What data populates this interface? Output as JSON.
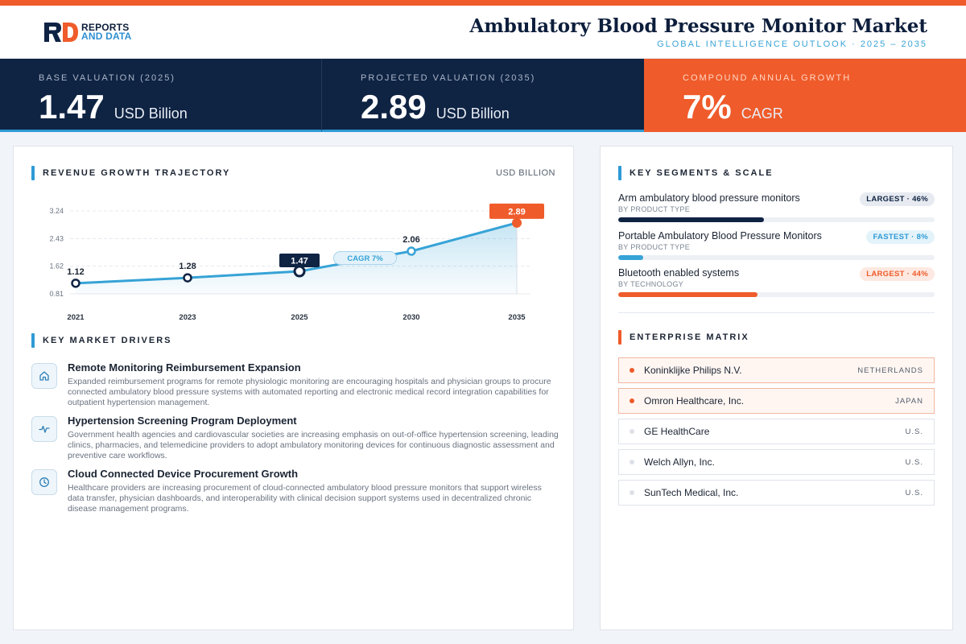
{
  "header": {
    "logo_line1": "REPORTS",
    "logo_line2": "AND DATA",
    "title": "Ambulatory Blood Pressure Monitor Market",
    "subtitle": "GLOBAL INTELLIGENCE OUTLOOK  ·  2025 – 2035"
  },
  "kpis": [
    {
      "label": "BASE VALUATION (2025)",
      "value": "1.47",
      "unit": "USD Billion"
    },
    {
      "label": "PROJECTED VALUATION (2035)",
      "value": "2.89",
      "unit": "USD Billion"
    },
    {
      "label": "COMPOUND ANNUAL GROWTH",
      "value": "7%",
      "unit": "CAGR"
    }
  ],
  "chart_section": {
    "title": "REVENUE GROWTH TRAJECTORY",
    "unit": "USD BILLION",
    "cagr_badge": "CAGR 7%"
  },
  "chart_data": {
    "type": "area",
    "title": "REVENUE GROWTH TRAJECTORY",
    "ylabel": "USD BILLION",
    "x": [
      "2021",
      "2023",
      "2025",
      "2030",
      "2035"
    ],
    "values": [
      1.12,
      1.28,
      1.47,
      2.06,
      2.89
    ],
    "data_labels": [
      "1.12",
      "1.28",
      "1.47",
      "2.06",
      "2.89"
    ],
    "yticks": [
      "0.81",
      "1.62",
      "2.43",
      "3.24"
    ],
    "ylim": [
      0.81,
      3.24
    ],
    "grid": true,
    "colors": {
      "line": "#36a3d6",
      "highlight_base": "#0f2343",
      "highlight_end": "#ef5b2a"
    }
  },
  "drivers_section": {
    "title": "KEY MARKET DRIVERS",
    "items": [
      {
        "icon": "home-icon",
        "title": "Remote Monitoring Reimbursement Expansion",
        "text": "Expanded reimbursement programs for remote physiologic monitoring are encouraging hospitals and physician groups to procure connected ambulatory blood pressure systems with automated reporting and electronic medical record integration capabilities for outpatient hypertension management."
      },
      {
        "icon": "pulse-icon",
        "title": "Hypertension Screening Program Deployment",
        "text": "Government health agencies and cardiovascular societies are increasing emphasis on out-of-office hypertension screening, leading clinics, pharmacies, and telemedicine providers to adopt ambulatory monitoring devices for continuous diagnostic assessment and preventive care workflows."
      },
      {
        "icon": "clock-icon",
        "title": "Cloud Connected Device Procurement Growth",
        "text": "Healthcare providers are increasing procurement of cloud-connected ambulatory blood pressure monitors that support wireless data transfer, physician dashboards, and interoperability with clinical decision support systems used in decentralized chronic disease management programs."
      }
    ]
  },
  "segments_section": {
    "title": "KEY SEGMENTS & SCALE",
    "items": [
      {
        "name": "Arm ambulatory blood pressure monitors",
        "category": "BY PRODUCT TYPE",
        "badge": "LARGEST · 46%",
        "share": 0.46,
        "color": "#0f2343",
        "badge_style": "dark"
      },
      {
        "name": "Portable Ambulatory Blood Pressure Monitors",
        "category": "BY PRODUCT TYPE",
        "badge": "FASTEST · 8%",
        "share": 0.08,
        "color": "#36a3d6",
        "badge_style": "blue"
      },
      {
        "name": "Bluetooth enabled systems",
        "category": "BY TECHNOLOGY",
        "badge": "LARGEST · 44%",
        "share": 0.44,
        "color": "#ef5b2a",
        "badge_style": "orange"
      }
    ]
  },
  "enterprise_section": {
    "title": "ENTERPRISE MATRIX",
    "items": [
      {
        "name": "Koninklijke Philips N.V.",
        "country": "NETHERLANDS",
        "highlight": true
      },
      {
        "name": "Omron Healthcare, Inc.",
        "country": "JAPAN",
        "highlight": true
      },
      {
        "name": "GE HealthCare",
        "country": "U.S.",
        "highlight": false
      },
      {
        "name": "Welch Allyn, Inc.",
        "country": "U.S.",
        "highlight": false
      },
      {
        "name": "SunTech Medical, Inc.",
        "country": "U.S.",
        "highlight": false
      }
    ]
  }
}
